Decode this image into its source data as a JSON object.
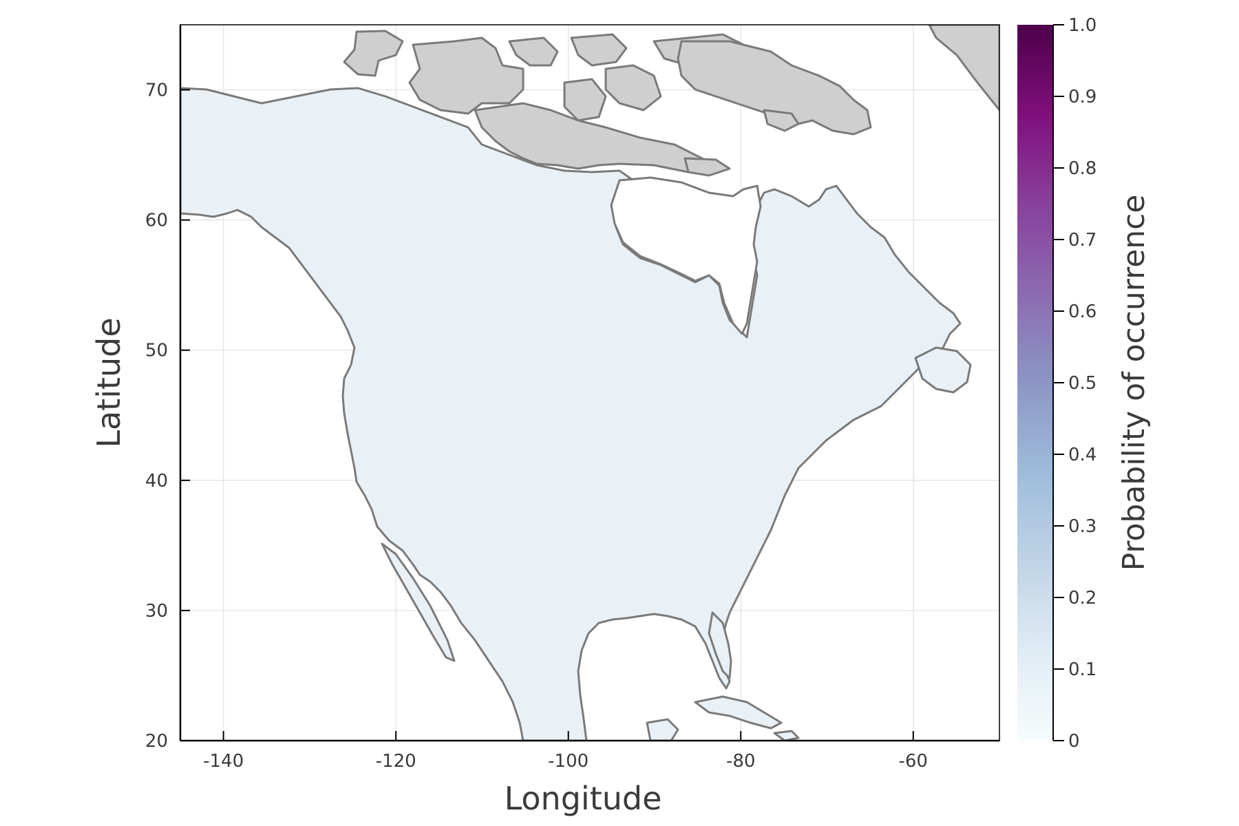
{
  "map": {
    "type": "species-distribution-map",
    "region": "North America",
    "xlabel": "Longitude",
    "ylabel": "Latitude",
    "xlim": [
      -145,
      -50
    ],
    "ylim": [
      20,
      75
    ],
    "xticks": [
      -140,
      -120,
      -100,
      -80,
      -60
    ],
    "yticks": [
      20,
      30,
      40,
      50,
      60,
      70
    ],
    "grid": true,
    "colors": {
      "no_data_land": "#cfcfcf",
      "coastline": "#7a7a7a",
      "predicted_fill": "#eaf1f6",
      "grid": "#e6e6e6",
      "frame": "#000000"
    }
  },
  "colorbar": {
    "label": "Probability of occurrence",
    "ticks": [
      "0",
      "0.1",
      "0.2",
      "0.3",
      "0.4",
      "0.5",
      "0.6",
      "0.7",
      "0.8",
      "0.9",
      "1.0"
    ],
    "colormap": [
      "#f7fcfd",
      "#e0ecf4",
      "#bfd3e6",
      "#9ebcda",
      "#8c96c6",
      "#8c6bb1",
      "#88419d",
      "#810f7c",
      "#4d004b"
    ]
  }
}
